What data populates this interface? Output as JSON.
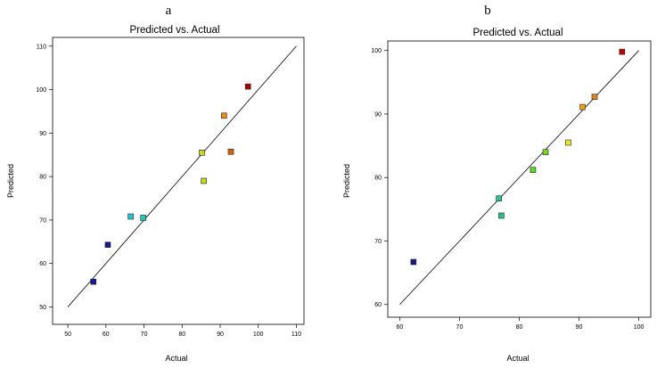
{
  "panels": [
    {
      "letter": "a"
    },
    {
      "letter": "b"
    }
  ],
  "chart_data": [
    {
      "type": "scatter",
      "title": "Predicted vs. Actual",
      "xlabel": "Actual",
      "ylabel": "Predicted",
      "xlim": [
        46,
        112
      ],
      "ylim": [
        46,
        112
      ],
      "xticks": [
        50,
        60,
        70,
        80,
        90,
        100,
        110
      ],
      "yticks": [
        50,
        60,
        70,
        80,
        90,
        100,
        110
      ],
      "grid": false,
      "reference_line": {
        "from": [
          50,
          50
        ],
        "to": [
          110,
          110
        ]
      },
      "series": [
        {
          "x": [
            56.7,
            60.5,
            66.5,
            69.8,
            85.2,
            85.7,
            91.0,
            92.8,
            97.3
          ],
          "y": [
            55.8,
            64.3,
            70.8,
            70.5,
            85.5,
            79.0,
            94.0,
            85.7,
            100.7
          ],
          "colors": [
            "#1a1a8c",
            "#1a1a8c",
            "#22c8d8",
            "#22c8b8",
            "#c8d822",
            "#c8d822",
            "#f08a10",
            "#d86010",
            "#b00000"
          ]
        }
      ]
    },
    {
      "type": "scatter",
      "title": "Predicted vs. Actual",
      "xlabel": "Actual",
      "ylabel": "Predicted",
      "xlim": [
        58,
        102
      ],
      "ylim": [
        58,
        101.5
      ],
      "xticks": [
        60,
        70,
        80,
        90,
        100
      ],
      "yticks": [
        60,
        70,
        80,
        90,
        100
      ],
      "grid": false,
      "reference_line": {
        "from": [
          60,
          60
        ],
        "to": [
          100,
          100
        ]
      },
      "series": [
        {
          "x": [
            62.3,
            76.6,
            77.0,
            82.3,
            84.4,
            88.2,
            90.6,
            92.6,
            97.2
          ],
          "y": [
            66.7,
            76.7,
            74.0,
            81.2,
            84.0,
            85.5,
            91.1,
            92.7,
            99.8
          ],
          "colors": [
            "#1a1a8c",
            "#22c8a0",
            "#22c888",
            "#5ad822",
            "#7ad822",
            "#e8e822",
            "#f0a010",
            "#e08020",
            "#c00000"
          ]
        }
      ]
    }
  ]
}
